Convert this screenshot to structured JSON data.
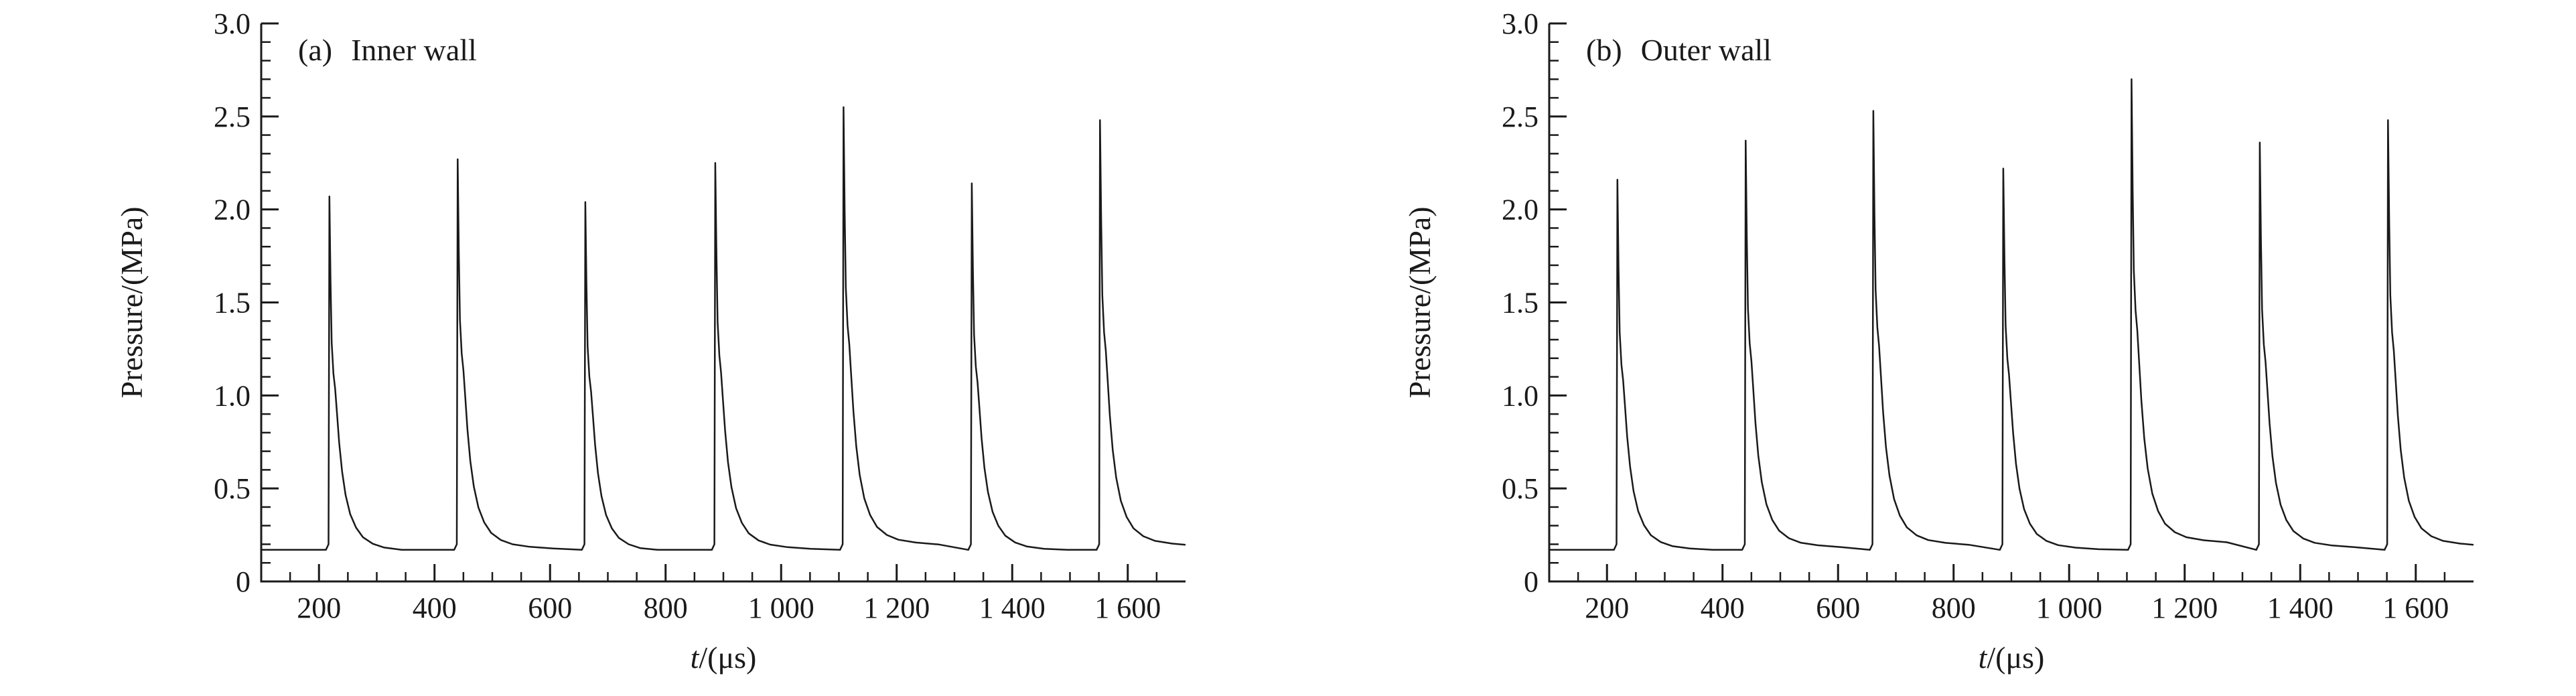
{
  "figure": {
    "background": "#ffffff",
    "line_color": "#1a1a1a",
    "tick_label_fontsize_px": 44
  },
  "chart_data": [
    {
      "type": "line",
      "panel_label": "(a)",
      "title": "Inner wall",
      "xlabel": "t/(μs)",
      "xlabel_var": "t",
      "xlabel_rest": "/(μs)",
      "ylabel": "Pressure/(MPa)",
      "xlim": [
        100,
        1700
      ],
      "ylim": [
        0,
        3.0
      ],
      "xticks": [
        200,
        400,
        600,
        800,
        1000,
        1200,
        1400,
        1600
      ],
      "xtick_labels": [
        "200",
        "400",
        "600",
        "800",
        "1 000",
        "1 200",
        "1 400",
        "1 600"
      ],
      "yticks": [
        0,
        0.5,
        1.0,
        1.5,
        2.0,
        2.5,
        3.0
      ],
      "ytick_labels": [
        "0",
        "0.5",
        "1.0",
        "1.5",
        "2.0",
        "2.5",
        "3.0"
      ],
      "x_minor_step": 50,
      "y_minor_step": 0.1,
      "baseline_mpa": 0.17,
      "pulse_times_us": [
        218,
        440,
        661,
        886,
        1108,
        1330,
        1552
      ],
      "pulse_peaks_mpa": [
        2.07,
        2.27,
        2.04,
        2.25,
        2.55,
        2.14,
        2.48
      ],
      "decay_profile_dt_frac": [
        [
          2,
          0.78
        ],
        [
          4,
          0.62
        ],
        [
          7,
          0.54
        ],
        [
          10,
          0.5
        ],
        [
          13,
          0.44
        ],
        [
          17,
          0.36
        ],
        [
          22,
          0.285
        ],
        [
          28,
          0.225
        ],
        [
          36,
          0.175
        ],
        [
          46,
          0.14
        ],
        [
          58,
          0.115
        ],
        [
          75,
          0.098
        ],
        [
          95,
          0.088
        ],
        [
          125,
          0.082
        ],
        [
          165,
          0.078
        ]
      ]
    },
    {
      "type": "line",
      "panel_label": "(b)",
      "title": "Outer wall",
      "xlabel": "t/(μs)",
      "xlabel_var": "t",
      "xlabel_rest": "/(μs)",
      "ylabel": "Pressure/(MPa)",
      "xlim": [
        100,
        1700
      ],
      "ylim": [
        0,
        3.0
      ],
      "xticks": [
        200,
        400,
        600,
        800,
        1000,
        1200,
        1400,
        1600
      ],
      "xtick_labels": [
        "200",
        "400",
        "600",
        "800",
        "1 000",
        "1 200",
        "1 400",
        "1 600"
      ],
      "yticks": [
        0,
        0.5,
        1.0,
        1.5,
        2.0,
        2.5,
        3.0
      ],
      "ytick_labels": [
        "0",
        "0.5",
        "1.0",
        "1.5",
        "2.0",
        "2.5",
        "3.0"
      ],
      "x_minor_step": 50,
      "y_minor_step": 0.1,
      "baseline_mpa": 0.17,
      "pulse_times_us": [
        218,
        440,
        661,
        886,
        1108,
        1330,
        1552
      ],
      "pulse_peaks_mpa": [
        2.16,
        2.37,
        2.53,
        2.22,
        2.7,
        2.36,
        2.48
      ],
      "decay_profile_dt_frac": [
        [
          2,
          0.78
        ],
        [
          4,
          0.62
        ],
        [
          7,
          0.54
        ],
        [
          10,
          0.5
        ],
        [
          13,
          0.44
        ],
        [
          17,
          0.36
        ],
        [
          22,
          0.285
        ],
        [
          28,
          0.225
        ],
        [
          36,
          0.175
        ],
        [
          46,
          0.14
        ],
        [
          58,
          0.115
        ],
        [
          75,
          0.098
        ],
        [
          95,
          0.088
        ],
        [
          125,
          0.082
        ],
        [
          165,
          0.078
        ]
      ]
    }
  ]
}
